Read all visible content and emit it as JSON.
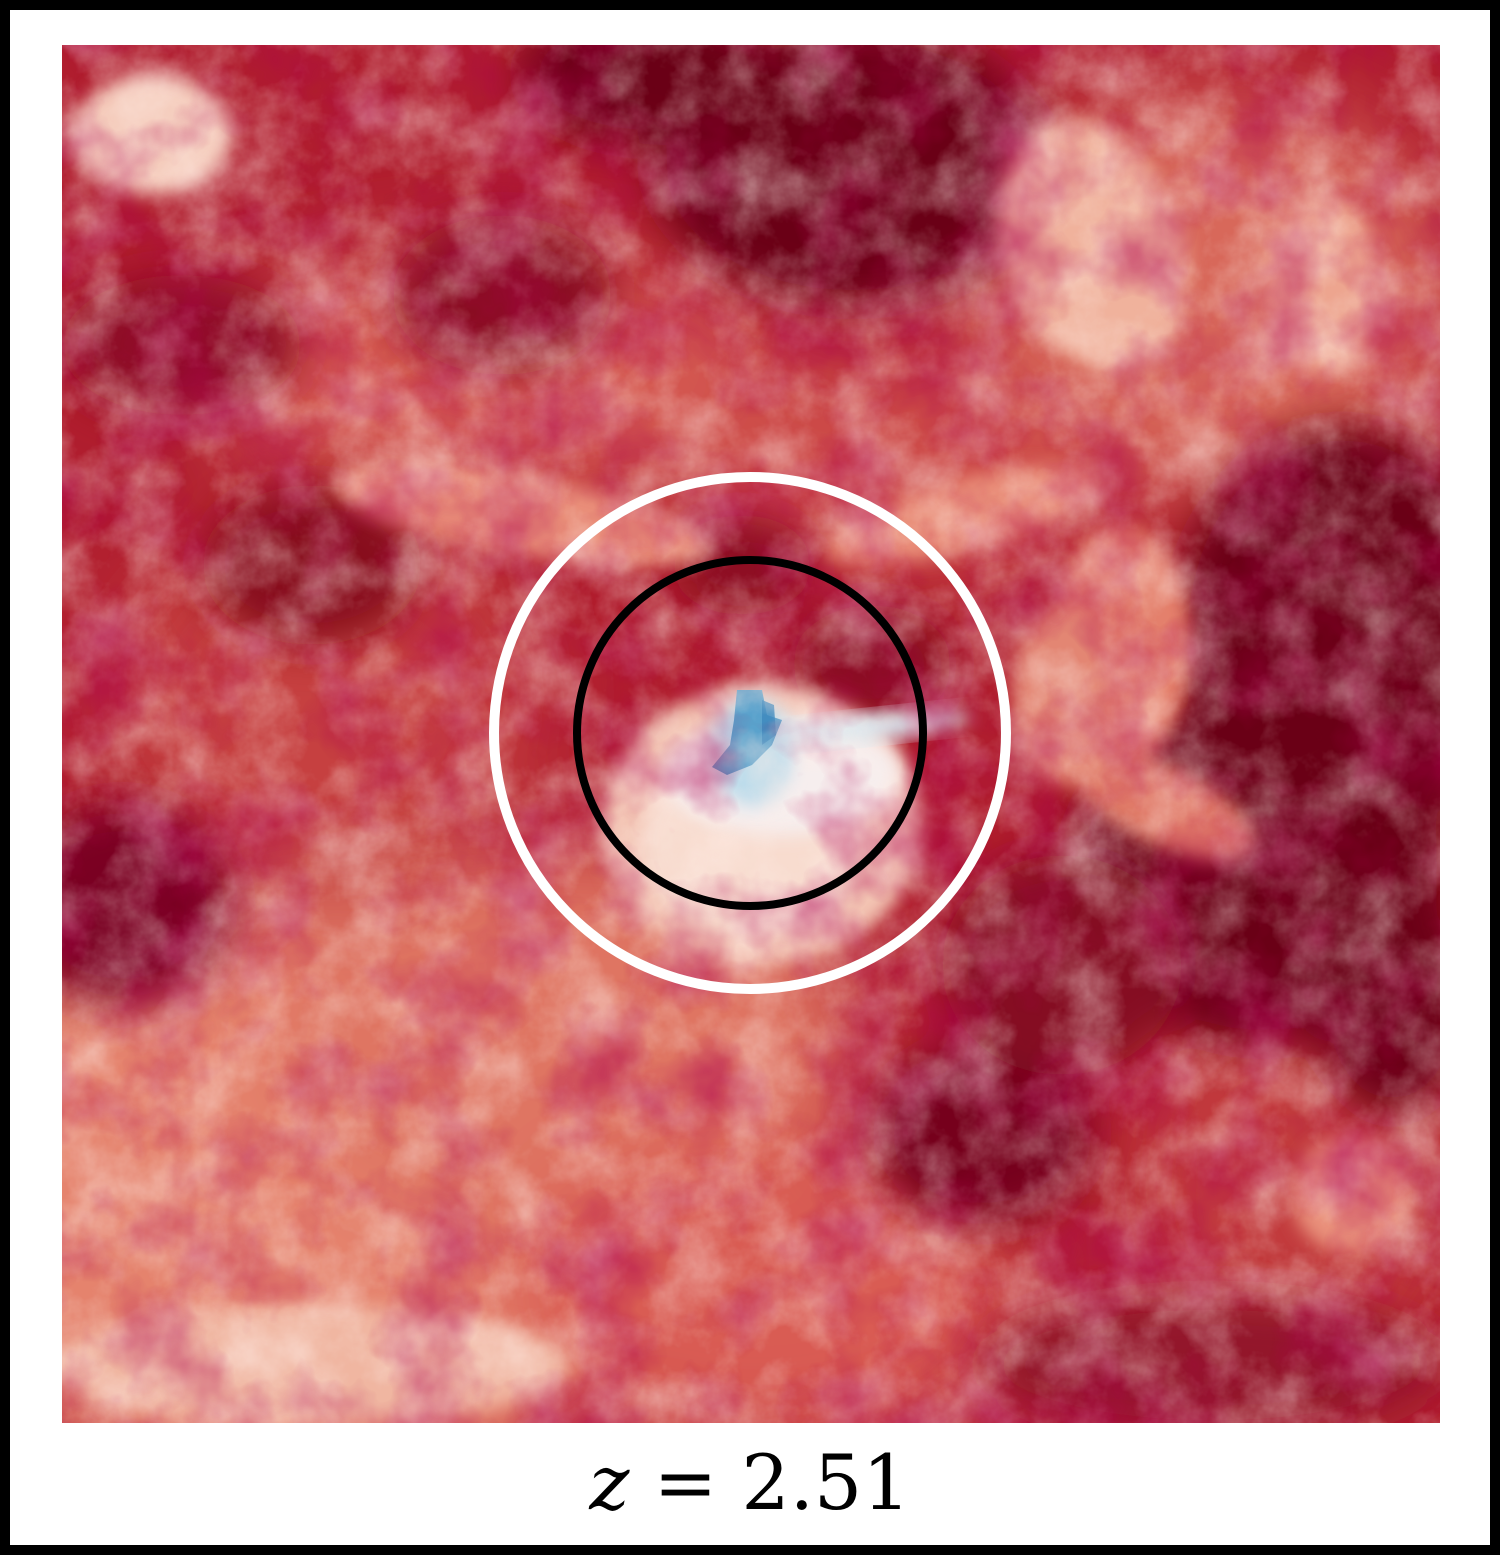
{
  "figure": {
    "label_variable": "z",
    "label_operator": "=",
    "label_value": "2.51"
  },
  "colors": {
    "frame": "#000000",
    "background": "#ffffff",
    "field_deep_red": "#6b0019",
    "field_red": "#a8162a",
    "field_mid_red": "#cf4a45",
    "field_salmon": "#eb8a72",
    "field_pale": "#f7d3c1",
    "field_white": "#f7f2f0",
    "field_light_blue": "#bcdceb",
    "field_blue": "#4f9bc9",
    "outer_circle": "#ffffff",
    "inner_circle": "#000000"
  },
  "icons": {
    "outer_circle": "outer-circle-marker",
    "inner_circle": "inner-circle-marker"
  }
}
